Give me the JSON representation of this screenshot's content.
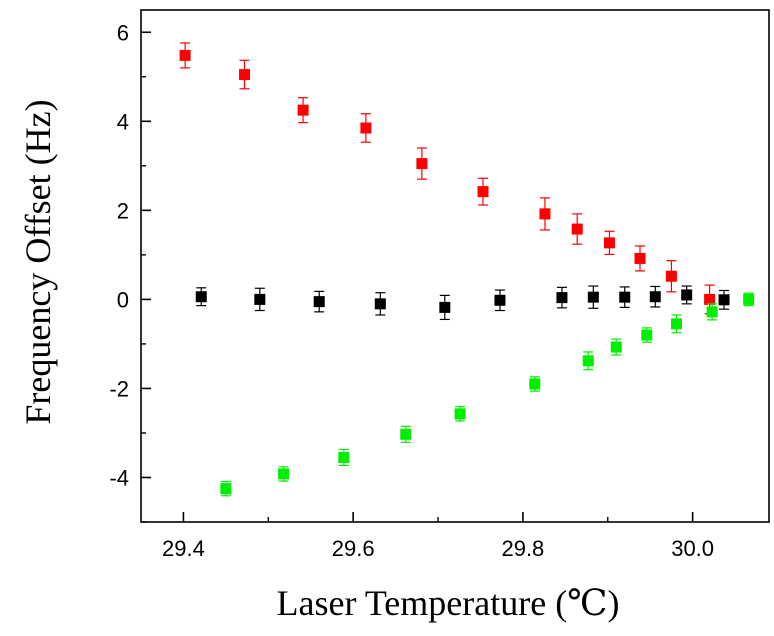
{
  "chart_data": {
    "type": "scatter",
    "title": "",
    "xlabel": "Laser Temperature (℃)",
    "ylabel": "Frequency Offset (Hz)",
    "xlim": [
      29.35,
      30.09
    ],
    "ylim": [
      -5.0,
      6.5
    ],
    "x_ticks": [
      "29.4",
      "29.6",
      "29.8",
      "30.0"
    ],
    "y_ticks": [
      "-4",
      "-2",
      "0",
      "2",
      "4",
      "6"
    ],
    "grid": false,
    "legend": "none",
    "series": [
      {
        "color": "#ff0000",
        "marker": "square",
        "x": [
          29.402,
          29.472,
          29.541,
          29.615,
          29.681,
          29.753,
          29.826,
          29.864,
          29.902,
          29.938,
          29.975,
          30.02
        ],
        "y": [
          5.48,
          5.05,
          4.25,
          3.85,
          3.05,
          2.42,
          1.92,
          1.58,
          1.27,
          0.92,
          0.52,
          0.0
        ],
        "err": [
          0.28,
          0.32,
          0.28,
          0.32,
          0.35,
          0.3,
          0.36,
          0.34,
          0.26,
          0.28,
          0.35,
          0.32
        ]
      },
      {
        "color": "#000000",
        "marker": "square",
        "x": [
          29.421,
          29.49,
          29.56,
          29.632,
          29.708,
          29.773,
          29.846,
          29.883,
          29.92,
          29.956,
          29.993,
          30.037
        ],
        "y": [
          0.06,
          0.0,
          -0.05,
          -0.1,
          -0.18,
          -0.02,
          0.04,
          0.05,
          0.05,
          0.06,
          0.1,
          -0.01
        ],
        "err": [
          0.2,
          0.25,
          0.23,
          0.25,
          0.27,
          0.23,
          0.23,
          0.25,
          0.23,
          0.23,
          0.2,
          0.21
        ]
      },
      {
        "color": "#00ee00",
        "marker": "square",
        "x": [
          29.45,
          29.518,
          29.589,
          29.662,
          29.726,
          29.814,
          29.877,
          29.91,
          29.946,
          29.981,
          30.023,
          30.066
        ],
        "y": [
          -4.25,
          -3.92,
          -3.55,
          -3.03,
          -2.57,
          -1.9,
          -1.38,
          -1.07,
          -0.8,
          -0.55,
          -0.28,
          0.0
        ],
        "err": [
          0.16,
          0.16,
          0.18,
          0.18,
          0.16,
          0.16,
          0.2,
          0.18,
          0.16,
          0.2,
          0.18,
          0.14
        ]
      }
    ]
  }
}
